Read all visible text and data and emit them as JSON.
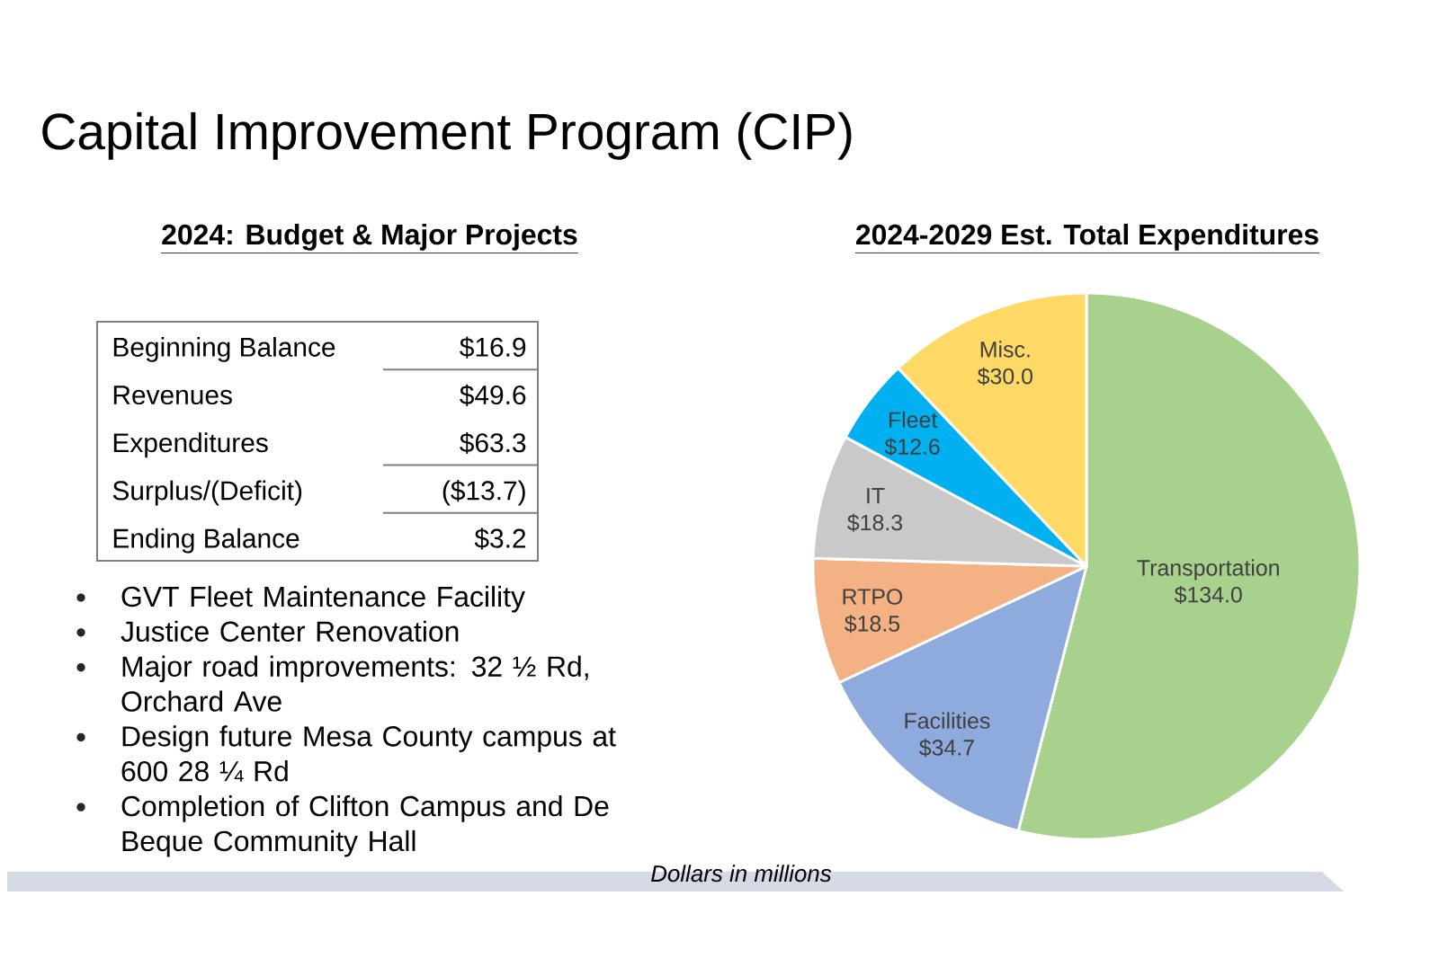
{
  "chart_data": [
    {
      "type": "other",
      "title": "Capital Improvement Program (CIP)",
      "subtitle": "2024: Budget & Major Projects",
      "categories": [
        "Beginning Balance",
        "Revenues",
        "Expenditures",
        "Surplus/(Deficit)",
        "Ending Balance"
      ],
      "value_labels": [
        "$16.9",
        "$49.6",
        "$63.3",
        "($13.7)",
        "$3.2"
      ],
      "annotations": [
        "GVT Fleet Maintenance Facility",
        "Justice Center Renovation",
        "Major road improvements: 32 ½ Rd, Orchard Ave",
        "Design future Mesa County campus at 600 28 ¼ Rd",
        "Completion of Clifton Campus and De Beque Community Hall"
      ]
    },
    {
      "type": "pie",
      "title": "2024-2029 Est. Total Expenditures",
      "categories": [
        "Transportation",
        "Facilities",
        "RTPO",
        "IT",
        "Fleet",
        "Misc."
      ],
      "values": [
        134.0,
        34.7,
        18.5,
        18.3,
        12.6,
        30.0
      ],
      "value_labels": [
        "$134.0",
        "$34.7",
        "$18.5",
        "$18.3",
        "$12.6",
        "$30.0"
      ],
      "colors": [
        "#a9d18e",
        "#8faadc",
        "#f4b183",
        "#c9c9c9",
        "#00b0f0",
        "#ffd966"
      ],
      "annotations": [
        "Dollars in millions"
      ]
    }
  ]
}
